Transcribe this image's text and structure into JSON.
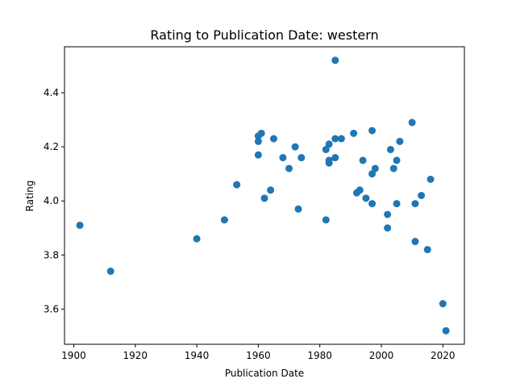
{
  "chart_data": {
    "type": "scatter",
    "title": "Rating to Publication Date: western",
    "xlabel": "Publication Date",
    "ylabel": "Rating",
    "xlim": [
      1897,
      2027
    ],
    "ylim": [
      3.47,
      4.57
    ],
    "xticks": [
      1900,
      1920,
      1940,
      1960,
      1980,
      2000,
      2020
    ],
    "yticks": [
      3.6,
      3.8,
      4.0,
      4.2,
      4.4
    ],
    "ytick_labels": [
      "3.6",
      "3.8",
      "4.0",
      "4.2",
      "4.4"
    ],
    "grid": false,
    "marker_color": "#1f77b4",
    "series": [
      {
        "points": [
          [
            1902,
            3.91
          ],
          [
            1912,
            3.74
          ],
          [
            1940,
            3.86
          ],
          [
            1949,
            3.93
          ],
          [
            1953,
            4.06
          ],
          [
            1960,
            4.17
          ],
          [
            1960,
            4.22
          ],
          [
            1960,
            4.24
          ],
          [
            1961,
            4.25
          ],
          [
            1962,
            4.01
          ],
          [
            1964,
            4.04
          ],
          [
            1965,
            4.23
          ],
          [
            1968,
            4.16
          ],
          [
            1970,
            4.12
          ],
          [
            1972,
            4.2
          ],
          [
            1973,
            3.97
          ],
          [
            1974,
            4.16
          ],
          [
            1982,
            3.93
          ],
          [
            1982,
            4.19
          ],
          [
            1983,
            4.21
          ],
          [
            1983,
            4.14
          ],
          [
            1983,
            4.15
          ],
          [
            1985,
            4.52
          ],
          [
            1985,
            4.16
          ],
          [
            1985,
            4.23
          ],
          [
            1987,
            4.23
          ],
          [
            1991,
            4.25
          ],
          [
            1992,
            4.03
          ],
          [
            1993,
            4.04
          ],
          [
            1994,
            4.15
          ],
          [
            1995,
            4.01
          ],
          [
            1997,
            4.26
          ],
          [
            1997,
            4.1
          ],
          [
            1997,
            3.99
          ],
          [
            1998,
            4.12
          ],
          [
            2002,
            3.95
          ],
          [
            2002,
            3.9
          ],
          [
            2003,
            4.19
          ],
          [
            2004,
            4.12
          ],
          [
            2005,
            4.15
          ],
          [
            2005,
            3.99
          ],
          [
            2006,
            4.22
          ],
          [
            2010,
            4.29
          ],
          [
            2011,
            3.99
          ],
          [
            2011,
            3.85
          ],
          [
            2013,
            4.02
          ],
          [
            2015,
            3.82
          ],
          [
            2016,
            4.08
          ],
          [
            2020,
            3.62
          ],
          [
            2021,
            3.52
          ]
        ]
      }
    ]
  }
}
